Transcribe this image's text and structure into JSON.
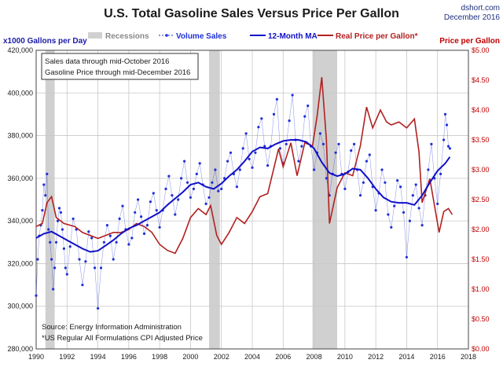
{
  "title": "U.S. Total Gasoline Sales Versus Price Per Gallon",
  "brand": {
    "site": "dshort.com",
    "date": "December 2016"
  },
  "annotation_box": {
    "line1": "Sales data through mid-October 2016",
    "line2": "Gasoline Price through mid-December 2016"
  },
  "source_notes": {
    "line1": "Source: Energy Information Administration",
    "line2": "*US Regular All Formulations CPI Adjusted Price"
  },
  "colors": {
    "volume": "#1f2fd6",
    "ma": "#1010c8",
    "price": "#b22020",
    "recession": "#d0d0d0",
    "right_axis": "#c00000"
  },
  "chart_data": {
    "type": "line",
    "title": "U.S. Total Gasoline Sales Versus Price Per Gallon",
    "ylabel": "x1000  Gallons per Day",
    "y2label": "Price per Gallon",
    "xlim": [
      1990,
      2018
    ],
    "ylim": [
      280000,
      420000
    ],
    "y2lim": [
      0,
      5
    ],
    "x_ticks": [
      "1990",
      "1992",
      "1994",
      "1996",
      "1998",
      "2000",
      "2002",
      "2004",
      "2006",
      "2008",
      "2010",
      "2012",
      "2014",
      "2016",
      "2018"
    ],
    "y_ticks": [
      "280,000",
      "300,000",
      "320,000",
      "340,000",
      "360,000",
      "380,000",
      "400,000",
      "420,000"
    ],
    "y2_ticks": [
      "$0.00",
      "$0.50",
      "$1.00",
      "$1.50",
      "$2.00",
      "$2.50",
      "$3.00",
      "$3.50",
      "$4.00",
      "$4.50",
      "$5.00"
    ],
    "legend": {
      "recessions": "Recessions",
      "volume": "Volume Sales",
      "ma": "12-Month MA",
      "price": "Real Price per Gallon*"
    },
    "recessions": [
      [
        1990.6,
        1991.2
      ],
      [
        2001.2,
        2001.9
      ],
      [
        2007.9,
        2009.5
      ]
    ],
    "ma_12": [
      [
        1990.0,
        332000
      ],
      [
        1990.5,
        334000
      ],
      [
        1991.0,
        335000
      ],
      [
        1991.5,
        333000
      ],
      [
        1992.0,
        331000
      ],
      [
        1992.5,
        329000
      ],
      [
        1993.0,
        327000
      ],
      [
        1993.5,
        325500
      ],
      [
        1994.0,
        326000
      ],
      [
        1994.5,
        328500
      ],
      [
        1995.0,
        331000
      ],
      [
        1995.5,
        334000
      ],
      [
        1996.0,
        336500
      ],
      [
        1996.5,
        338000
      ],
      [
        1997.0,
        340000
      ],
      [
        1997.5,
        342000
      ],
      [
        1998.0,
        344000
      ],
      [
        1998.5,
        347500
      ],
      [
        1999.0,
        350500
      ],
      [
        1999.5,
        353500
      ],
      [
        2000.0,
        357000
      ],
      [
        2000.5,
        358000
      ],
      [
        2001.0,
        356000
      ],
      [
        2001.5,
        355000
      ],
      [
        2002.0,
        357500
      ],
      [
        2002.5,
        361000
      ],
      [
        2003.0,
        364000
      ],
      [
        2003.5,
        368000
      ],
      [
        2004.0,
        372500
      ],
      [
        2004.5,
        374500
      ],
      [
        2005.0,
        374000
      ],
      [
        2005.5,
        376000
      ],
      [
        2006.0,
        377500
      ],
      [
        2006.5,
        378000
      ],
      [
        2007.0,
        378000
      ],
      [
        2007.5,
        377000
      ],
      [
        2008.0,
        374000
      ],
      [
        2008.5,
        367500
      ],
      [
        2009.0,
        362500
      ],
      [
        2009.5,
        361000
      ],
      [
        2010.0,
        362000
      ],
      [
        2010.5,
        364500
      ],
      [
        2011.0,
        364000
      ],
      [
        2011.5,
        360000
      ],
      [
        2012.0,
        355000
      ],
      [
        2012.5,
        351000
      ],
      [
        2013.0,
        349000
      ],
      [
        2013.5,
        348500
      ],
      [
        2014.0,
        348500
      ],
      [
        2014.5,
        347500
      ],
      [
        2015.0,
        352000
      ],
      [
        2015.5,
        358000
      ],
      [
        2016.0,
        363500
      ],
      [
        2016.5,
        367000
      ],
      [
        2016.8,
        370000
      ]
    ],
    "real_price": [
      [
        1990.0,
        2.05
      ],
      [
        1990.4,
        2.1
      ],
      [
        1990.7,
        2.45
      ],
      [
        1991.0,
        2.55
      ],
      [
        1991.3,
        2.2
      ],
      [
        1991.8,
        2.1
      ],
      [
        1992.5,
        2.05
      ],
      [
        1993.0,
        1.95
      ],
      [
        1993.5,
        1.9
      ],
      [
        1994.0,
        1.85
      ],
      [
        1994.5,
        1.9
      ],
      [
        1995.0,
        1.95
      ],
      [
        1995.5,
        1.95
      ],
      [
        1996.0,
        2.0
      ],
      [
        1996.5,
        2.1
      ],
      [
        1997.0,
        2.05
      ],
      [
        1997.5,
        1.95
      ],
      [
        1998.0,
        1.75
      ],
      [
        1998.5,
        1.65
      ],
      [
        1999.0,
        1.6
      ],
      [
        1999.5,
        1.85
      ],
      [
        2000.0,
        2.2
      ],
      [
        2000.5,
        2.35
      ],
      [
        2001.0,
        2.25
      ],
      [
        2001.3,
        2.4
      ],
      [
        2001.7,
        1.9
      ],
      [
        2002.0,
        1.75
      ],
      [
        2002.5,
        1.95
      ],
      [
        2003.0,
        2.2
      ],
      [
        2003.5,
        2.1
      ],
      [
        2004.0,
        2.3
      ],
      [
        2004.5,
        2.55
      ],
      [
        2005.0,
        2.6
      ],
      [
        2005.7,
        3.35
      ],
      [
        2006.0,
        3.05
      ],
      [
        2006.5,
        3.45
      ],
      [
        2006.9,
        2.9
      ],
      [
        2007.4,
        3.45
      ],
      [
        2007.9,
        3.4
      ],
      [
        2008.2,
        3.9
      ],
      [
        2008.5,
        4.55
      ],
      [
        2008.8,
        3.5
      ],
      [
        2009.0,
        2.1
      ],
      [
        2009.5,
        2.7
      ],
      [
        2010.0,
        2.95
      ],
      [
        2010.5,
        2.9
      ],
      [
        2011.0,
        3.4
      ],
      [
        2011.4,
        4.05
      ],
      [
        2011.8,
        3.7
      ],
      [
        2012.3,
        4.0
      ],
      [
        2012.7,
        3.8
      ],
      [
        2013.0,
        3.75
      ],
      [
        2013.5,
        3.8
      ],
      [
        2014.0,
        3.7
      ],
      [
        2014.5,
        3.85
      ],
      [
        2014.8,
        3.3
      ],
      [
        2015.0,
        2.45
      ],
      [
        2015.5,
        2.85
      ],
      [
        2015.9,
        2.25
      ],
      [
        2016.1,
        1.95
      ],
      [
        2016.4,
        2.3
      ],
      [
        2016.7,
        2.35
      ],
      [
        2016.95,
        2.25
      ]
    ],
    "volume_sales": [
      [
        1990.0,
        305000
      ],
      [
        1990.1,
        322000
      ],
      [
        1990.2,
        333000
      ],
      [
        1990.3,
        338000
      ],
      [
        1990.4,
        345000
      ],
      [
        1990.5,
        357000
      ],
      [
        1990.6,
        352000
      ],
      [
        1990.7,
        362000
      ],
      [
        1990.8,
        336000
      ],
      [
        1990.9,
        330000
      ],
      [
        1991.0,
        322000
      ],
      [
        1991.1,
        308000
      ],
      [
        1991.2,
        318000
      ],
      [
        1991.3,
        330000
      ],
      [
        1991.4,
        340000
      ],
      [
        1991.5,
        346000
      ],
      [
        1991.6,
        344000
      ],
      [
        1991.7,
        336000
      ],
      [
        1991.8,
        327000
      ],
      [
        1991.9,
        318000
      ],
      [
        1992.0,
        315000
      ],
      [
        1992.2,
        328000
      ],
      [
        1992.4,
        341000
      ],
      [
        1992.6,
        336000
      ],
      [
        1992.8,
        322000
      ],
      [
        1993.0,
        310000
      ],
      [
        1993.2,
        321000
      ],
      [
        1993.4,
        335000
      ],
      [
        1993.6,
        332000
      ],
      [
        1993.8,
        318000
      ],
      [
        1994.0,
        299000
      ],
      [
        1994.2,
        318000
      ],
      [
        1994.4,
        330000
      ],
      [
        1994.6,
        338000
      ],
      [
        1994.8,
        333000
      ],
      [
        1995.0,
        322000
      ],
      [
        1995.2,
        330000
      ],
      [
        1995.4,
        341000
      ],
      [
        1995.6,
        347000
      ],
      [
        1995.8,
        336000
      ],
      [
        1996.0,
        329000
      ],
      [
        1996.2,
        332000
      ],
      [
        1996.4,
        344000
      ],
      [
        1996.6,
        350000
      ],
      [
        1996.8,
        342000
      ],
      [
        1997.0,
        334000
      ],
      [
        1997.2,
        338000
      ],
      [
        1997.4,
        349000
      ],
      [
        1997.6,
        353000
      ],
      [
        1997.8,
        345000
      ],
      [
        1998.0,
        337000
      ],
      [
        1998.2,
        345000
      ],
      [
        1998.4,
        355000
      ],
      [
        1998.6,
        361000
      ],
      [
        1998.8,
        352000
      ],
      [
        1999.0,
        343000
      ],
      [
        1999.2,
        350000
      ],
      [
        1999.4,
        360000
      ],
      [
        1999.6,
        368000
      ],
      [
        1999.8,
        358000
      ],
      [
        2000.0,
        351000
      ],
      [
        2000.2,
        355000
      ],
      [
        2000.4,
        362000
      ],
      [
        2000.6,
        367000
      ],
      [
        2000.8,
        357000
      ],
      [
        2001.0,
        348000
      ],
      [
        2001.2,
        351000
      ],
      [
        2001.4,
        358000
      ],
      [
        2001.6,
        364000
      ],
      [
        2001.8,
        354000
      ],
      [
        2002.0,
        355000
      ],
      [
        2002.2,
        360000
      ],
      [
        2002.4,
        368000
      ],
      [
        2002.6,
        372000
      ],
      [
        2002.8,
        362000
      ],
      [
        2003.0,
        356000
      ],
      [
        2003.2,
        364000
      ],
      [
        2003.4,
        374000
      ],
      [
        2003.6,
        381000
      ],
      [
        2003.8,
        369000
      ],
      [
        2004.0,
        365000
      ],
      [
        2004.2,
        372000
      ],
      [
        2004.4,
        384000
      ],
      [
        2004.6,
        388000
      ],
      [
        2004.8,
        375000
      ],
      [
        2005.0,
        366000
      ],
      [
        2005.2,
        375000
      ],
      [
        2005.4,
        390000
      ],
      [
        2005.6,
        397000
      ],
      [
        2005.8,
        374000
      ],
      [
        2006.0,
        367000
      ],
      [
        2006.2,
        376000
      ],
      [
        2006.4,
        387000
      ],
      [
        2006.6,
        399000
      ],
      [
        2006.8,
        378000
      ],
      [
        2007.0,
        368000
      ],
      [
        2007.2,
        375000
      ],
      [
        2007.4,
        389000
      ],
      [
        2007.6,
        394000
      ],
      [
        2007.8,
        375000
      ],
      [
        2008.0,
        364000
      ],
      [
        2008.2,
        372000
      ],
      [
        2008.4,
        381000
      ],
      [
        2008.6,
        376000
      ],
      [
        2008.8,
        360000
      ],
      [
        2009.0,
        352000
      ],
      [
        2009.2,
        362000
      ],
      [
        2009.4,
        372000
      ],
      [
        2009.6,
        376000
      ],
      [
        2009.8,
        362000
      ],
      [
        2010.0,
        355000
      ],
      [
        2010.2,
        363000
      ],
      [
        2010.4,
        373000
      ],
      [
        2010.6,
        376000
      ],
      [
        2010.8,
        364000
      ],
      [
        2011.0,
        352000
      ],
      [
        2011.2,
        358000
      ],
      [
        2011.4,
        368000
      ],
      [
        2011.6,
        371000
      ],
      [
        2011.8,
        356000
      ],
      [
        2012.0,
        345000
      ],
      [
        2012.2,
        353000
      ],
      [
        2012.4,
        364000
      ],
      [
        2012.6,
        358000
      ],
      [
        2012.8,
        343000
      ],
      [
        2013.0,
        337000
      ],
      [
        2013.2,
        347000
      ],
      [
        2013.4,
        359000
      ],
      [
        2013.6,
        356000
      ],
      [
        2013.8,
        344000
      ],
      [
        2014.0,
        323000
      ],
      [
        2014.2,
        340000
      ],
      [
        2014.4,
        352000
      ],
      [
        2014.6,
        357000
      ],
      [
        2014.8,
        346000
      ],
      [
        2015.0,
        338000
      ],
      [
        2015.2,
        352000
      ],
      [
        2015.4,
        364000
      ],
      [
        2015.6,
        376000
      ],
      [
        2015.8,
        360000
      ],
      [
        2016.0,
        348000
      ],
      [
        2016.2,
        362000
      ],
      [
        2016.4,
        378000
      ],
      [
        2016.5,
        390000
      ],
      [
        2016.6,
        385000
      ],
      [
        2016.7,
        375000
      ],
      [
        2016.8,
        374000
      ]
    ]
  }
}
